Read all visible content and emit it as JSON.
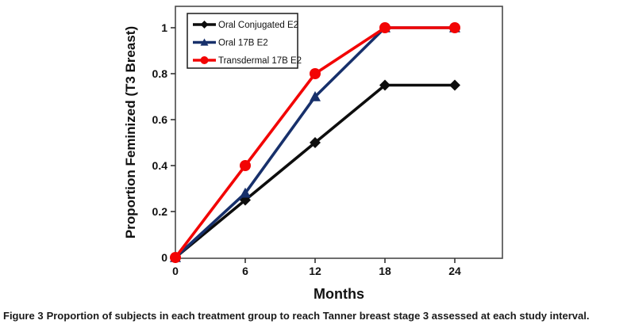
{
  "chart_data": {
    "type": "line",
    "x": [
      0,
      6,
      12,
      18,
      24
    ],
    "x_ticks": [
      "0",
      "6",
      "12",
      "18",
      "24"
    ],
    "y_ticks": [
      "0",
      "0.2",
      "0.4",
      "0.6",
      "0.8",
      "1"
    ],
    "y_tick_values": [
      0,
      0.2,
      0.4,
      0.6,
      0.8,
      1
    ],
    "xlabel": "Months",
    "ylabel": "Proportion Feminized (T3 Breast)",
    "xlim": [
      0,
      28
    ],
    "ylim": [
      0,
      1.09
    ],
    "grid": false,
    "legend_position": "top-left-inside",
    "series": [
      {
        "name": "Oral Conjugated E2",
        "marker": "diamond",
        "color": "#0d0d0d",
        "values": [
          0,
          0.25,
          0.5,
          0.75,
          0.75
        ]
      },
      {
        "name": "Oral 17B E2",
        "marker": "triangle",
        "color": "#17306b",
        "values": [
          0,
          0.28,
          0.7,
          1,
          1
        ]
      },
      {
        "name": "Transdermal 17B E2",
        "marker": "circle",
        "color": "#f20404",
        "values": [
          0,
          0.4,
          0.8,
          1,
          1
        ]
      }
    ],
    "colors": {
      "axis_box": "#4a4a4a",
      "tick": "#333333",
      "legend_border": "#1a1a1a",
      "text": "#111111"
    }
  },
  "caption": {
    "prefix": "Figure 3",
    "text": "Proportion of subjects in each treatment group to reach Tanner breast stage 3 assessed at each study interval."
  }
}
